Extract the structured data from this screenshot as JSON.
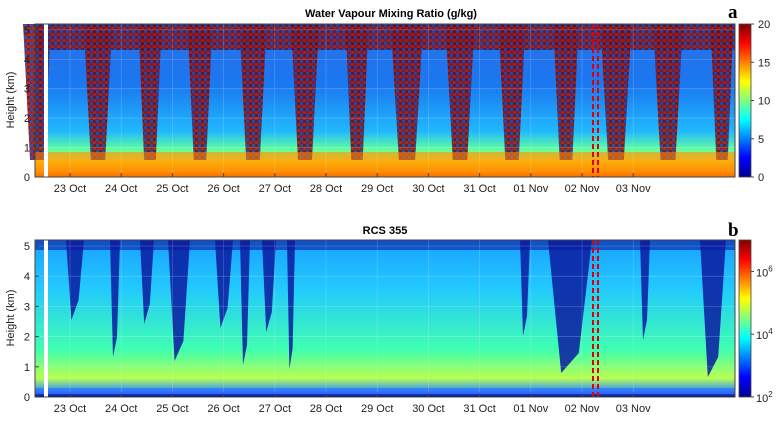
{
  "chart_data": [
    {
      "type": "heatmap",
      "panel_letter": "a",
      "title": "Water Vapour Mixing Ratio (g/kg)",
      "ylabel": "Height (km)",
      "xlabel": "",
      "x_tick_labels": [
        "23 Oct",
        "24 Oct",
        "25 Oct",
        "26 Oct",
        "27 Oct",
        "28 Oct",
        "29 Oct",
        "30 Oct",
        "31 Oct",
        "01 Nov",
        "02 Nov",
        "03 Nov"
      ],
      "y_ticks": [
        0,
        1,
        2,
        3,
        4,
        5
      ],
      "ylim": [
        0,
        5.2
      ],
      "colorbar": {
        "scale": "linear",
        "ticks": [
          0,
          5,
          10,
          15,
          20
        ],
        "tick_labels": [
          "0",
          "5",
          "10",
          "15",
          "20"
        ],
        "range": [
          0,
          20
        ]
      },
      "red_dashed_marker_day": "01 Nov",
      "daytime_bands_no_data": true,
      "colormap": "jet"
    },
    {
      "type": "heatmap",
      "panel_letter": "b",
      "title": "RCS 355",
      "ylabel": "Height (km)",
      "xlabel": "",
      "x_tick_labels": [
        "23 Oct",
        "24 Oct",
        "25 Oct",
        "26 Oct",
        "27 Oct",
        "28 Oct",
        "29 Oct",
        "30 Oct",
        "31 Oct",
        "01 Nov",
        "02 Nov",
        "03 Nov"
      ],
      "y_ticks": [
        0,
        1,
        2,
        3,
        4,
        5
      ],
      "ylim": [
        0,
        5.2
      ],
      "colorbar": {
        "scale": "log",
        "ticks": [
          2,
          4,
          6
        ],
        "tick_labels": [
          "10",
          "10",
          "10"
        ],
        "tick_exponents": [
          "2",
          "4",
          "6"
        ]
      },
      "red_dashed_marker_day": "01 Nov",
      "colormap": "jet"
    }
  ]
}
